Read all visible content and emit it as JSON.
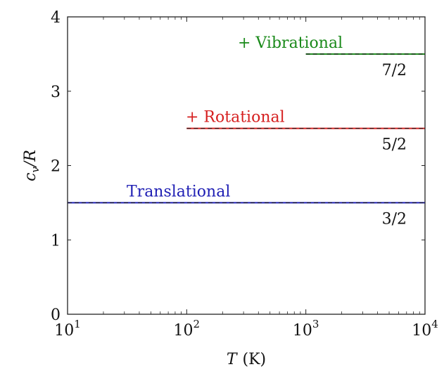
{
  "chart_data": {
    "type": "line",
    "x_scale": "log",
    "xlim": [
      10,
      10000
    ],
    "ylim": [
      0,
      4
    ],
    "grid": false,
    "xlabel_var": "T",
    "xlabel_unit": "(K)",
    "ylabel": "cv/R",
    "x_ticks": [
      10,
      100,
      1000,
      10000
    ],
    "x_tick_base": "10",
    "x_tick_exponents": [
      "1",
      "2",
      "3",
      "4"
    ],
    "y_ticks": [
      0,
      1,
      2,
      3,
      4
    ],
    "y_tick_labels": [
      "0",
      "1",
      "2",
      "3",
      "4"
    ],
    "series": [
      {
        "x": [
          10,
          10000
        ],
        "y": [
          1.5,
          1.5
        ],
        "color": "#1f1fb4",
        "label": "Translational",
        "value_label": "3/2"
      },
      {
        "x": [
          100,
          10000
        ],
        "y": [
          2.5,
          2.5
        ],
        "color": "#d62020",
        "label": "+ Rotational",
        "value_label": "5/2"
      },
      {
        "x": [
          1000,
          10000
        ],
        "y": [
          3.5,
          3.5
        ],
        "color": "#1a8a1a",
        "label": "+ Vibrational",
        "value_label": "7/2"
      }
    ]
  }
}
